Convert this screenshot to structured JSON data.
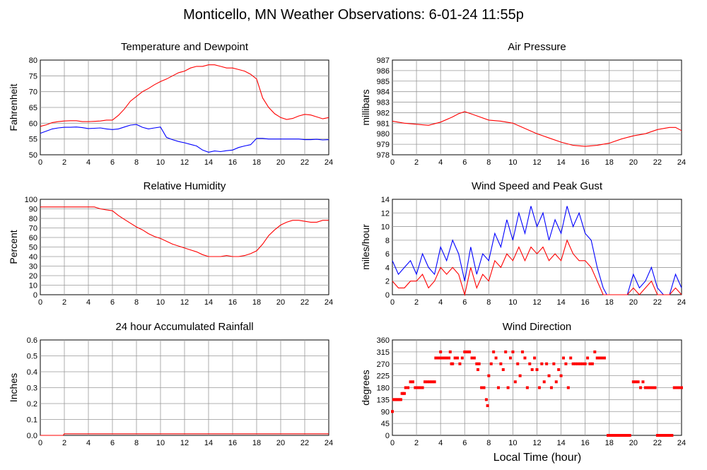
{
  "page_title": "Monticello, MN Weather Observations: 6-01-24 11:55p",
  "x_axis_label": "Local Time (hour)",
  "x_ticks": [
    "0",
    "2",
    "4",
    "6",
    "8",
    "10",
    "12",
    "14",
    "16",
    "18",
    "20",
    "22",
    "24"
  ],
  "colors": {
    "red": "#ff0000",
    "blue": "#0000ff",
    "grid": "#999999"
  },
  "chart_data": [
    {
      "id": "temperature",
      "type": "line",
      "title": "Temperature and Dewpoint",
      "ylabel": "Fahrenheit",
      "xlim": [
        0,
        24
      ],
      "ylim": [
        50,
        80
      ],
      "yticks": [
        "50",
        "55",
        "60",
        "65",
        "70",
        "75",
        "80"
      ],
      "grid": true,
      "series": [
        {
          "color": "#ff0000",
          "x": [
            0,
            0.5,
            1,
            1.5,
            2,
            2.5,
            3,
            3.5,
            4,
            4.5,
            5,
            5.5,
            6,
            6.5,
            7,
            7.5,
            8,
            8.5,
            9,
            9.5,
            10,
            10.5,
            11,
            11.5,
            12,
            12.5,
            13,
            13.5,
            14,
            14.5,
            15,
            15.5,
            16,
            16.5,
            17,
            17.5,
            18,
            18.5,
            19,
            19.5,
            20,
            20.5,
            21,
            21.5,
            22,
            22.5,
            23,
            23.5,
            24
          ],
          "values": [
            59,
            59.5,
            60.2,
            60.5,
            60.7,
            60.8,
            60.8,
            60.5,
            60.5,
            60.6,
            60.7,
            61,
            61,
            62.5,
            64.5,
            67,
            68.5,
            70,
            71,
            72.2,
            73.2,
            74,
            75,
            76,
            76.5,
            77.5,
            78,
            78,
            78.5,
            78.5,
            78,
            77.5,
            77.5,
            77,
            76.5,
            75.5,
            74,
            68,
            65,
            63,
            61.8,
            61.2,
            61.5,
            62.3,
            62.8,
            62.6,
            62,
            61.4,
            61.8
          ]
        },
        {
          "color": "#0000ff",
          "x": [
            0,
            0.5,
            1,
            1.5,
            2,
            2.5,
            3,
            3.5,
            4,
            4.5,
            5,
            5.5,
            6,
            6.5,
            7,
            7.5,
            8,
            8.5,
            9,
            9.5,
            10,
            10.5,
            11,
            11.5,
            12,
            12.5,
            13,
            13.5,
            14,
            14.5,
            15,
            15.5,
            16,
            16.5,
            17,
            17.5,
            18,
            18.5,
            19,
            19.5,
            20,
            20.5,
            21,
            21.5,
            22,
            22.5,
            23,
            23.5,
            24
          ],
          "values": [
            56.8,
            57.5,
            58.2,
            58.5,
            58.7,
            58.7,
            58.8,
            58.6,
            58.3,
            58.4,
            58.5,
            58.2,
            58,
            58.2,
            58.8,
            59.4,
            59.6,
            58.7,
            58.2,
            58.5,
            58.8,
            55.5,
            54.8,
            54.2,
            53.8,
            53.3,
            52.8,
            51.5,
            50.8,
            51.2,
            51,
            51.3,
            51.5,
            52.3,
            52.8,
            53.2,
            55.2,
            55.2,
            55,
            55,
            55,
            55,
            55,
            55,
            54.8,
            54.8,
            54.9,
            54.7,
            54.8
          ]
        }
      ]
    },
    {
      "id": "pressure",
      "type": "line",
      "title": "Air Pressure",
      "ylabel": "millibars",
      "xlim": [
        0,
        24
      ],
      "ylim": [
        978,
        987
      ],
      "yticks": [
        "978",
        "979",
        "980",
        "981",
        "982",
        "983",
        "984",
        "985",
        "986",
        "987"
      ],
      "grid": true,
      "series": [
        {
          "color": "#ff0000",
          "x": [
            0,
            1,
            2,
            3,
            4,
            5,
            5.5,
            6,
            6.5,
            7,
            8,
            9,
            10,
            11,
            12,
            13,
            14,
            15,
            16,
            17,
            18,
            19,
            20,
            21,
            22,
            23,
            23.5,
            24
          ],
          "values": [
            981.2,
            981.0,
            980.9,
            980.8,
            981.1,
            981.6,
            981.9,
            982.1,
            981.9,
            981.7,
            981.3,
            981.2,
            981.0,
            980.5,
            980.0,
            979.6,
            979.2,
            978.9,
            978.8,
            978.9,
            979.1,
            979.5,
            979.8,
            980.0,
            980.4,
            980.6,
            980.6,
            980.3
          ]
        }
      ]
    },
    {
      "id": "humidity",
      "type": "line",
      "title": "Relative Humidity",
      "ylabel": "Percent",
      "xlim": [
        0,
        24
      ],
      "ylim": [
        0,
        100
      ],
      "yticks": [
        "0",
        "10",
        "20",
        "30",
        "40",
        "50",
        "60",
        "70",
        "80",
        "90",
        "100"
      ],
      "grid": true,
      "series": [
        {
          "color": "#ff0000",
          "x": [
            0,
            1,
            2,
            3,
            4,
            4.5,
            5,
            5.5,
            6,
            6.5,
            7,
            7.5,
            8,
            8.5,
            9,
            9.5,
            10,
            10.5,
            11,
            11.5,
            12,
            12.5,
            13,
            13.5,
            14,
            14.5,
            15,
            15.5,
            16,
            16.5,
            17,
            17.5,
            18,
            18.5,
            19,
            19.5,
            20,
            20.5,
            21,
            21.5,
            22,
            22.5,
            23,
            23.5,
            24
          ],
          "values": [
            92,
            92,
            92,
            92,
            92,
            92,
            90,
            89,
            88,
            83,
            79,
            75,
            71,
            68,
            64,
            61,
            59,
            56,
            53,
            51,
            49,
            47,
            45,
            42,
            40,
            40,
            40,
            41,
            40,
            40,
            41,
            43,
            46,
            53,
            62,
            68,
            73,
            76,
            78,
            78,
            77,
            76,
            76,
            78,
            78
          ]
        }
      ]
    },
    {
      "id": "wind",
      "type": "line",
      "title": "Wind Speed and Peak Gust",
      "ylabel": "miles/hour",
      "xlim": [
        0,
        24
      ],
      "ylim": [
        0,
        14
      ],
      "yticks": [
        "0",
        "2",
        "4",
        "6",
        "8",
        "10",
        "12",
        "14"
      ],
      "grid": true,
      "series": [
        {
          "color": "#0000ff",
          "x": [
            0,
            0.5,
            1,
            1.5,
            2,
            2.5,
            3,
            3.5,
            4,
            4.5,
            5,
            5.5,
            6,
            6.5,
            7,
            7.5,
            8,
            8.5,
            9,
            9.5,
            10,
            10.5,
            11,
            11.5,
            12,
            12.5,
            13,
            13.5,
            14,
            14.5,
            15,
            15.5,
            16,
            16.5,
            17,
            17.5,
            17.8,
            18,
            19,
            19.5,
            20,
            20.5,
            21,
            21.5,
            22,
            22.5,
            23,
            23.5,
            24
          ],
          "values": [
            5,
            3,
            4,
            5,
            3,
            6,
            4,
            3,
            7,
            5,
            8,
            6,
            2,
            7,
            3,
            6,
            5,
            9,
            7,
            11,
            8,
            12,
            9,
            13,
            10,
            12,
            8,
            11,
            9,
            13,
            10,
            12,
            9,
            8,
            4,
            1,
            0,
            0,
            0,
            0,
            3,
            1,
            2,
            4,
            1,
            0,
            0,
            3,
            1
          ]
        },
        {
          "color": "#ff0000",
          "x": [
            0,
            0.5,
            1,
            1.5,
            2,
            2.5,
            3,
            3.5,
            4,
            4.5,
            5,
            5.5,
            6,
            6.5,
            7,
            7.5,
            8,
            8.5,
            9,
            9.5,
            10,
            10.5,
            11,
            11.5,
            12,
            12.5,
            13,
            13.5,
            14,
            14.5,
            15,
            15.5,
            16,
            16.5,
            17,
            17.5,
            17.8,
            18,
            19,
            19.5,
            20,
            20.5,
            21,
            21.5,
            22,
            22.5,
            23,
            23.5,
            24
          ],
          "values": [
            2,
            1,
            1,
            2,
            2,
            3,
            1,
            2,
            4,
            3,
            4,
            3,
            0,
            4,
            1,
            3,
            2,
            5,
            4,
            6,
            5,
            7,
            5,
            7,
            6,
            7,
            5,
            6,
            5,
            8,
            6,
            5,
            5,
            4,
            2,
            0,
            0,
            0,
            0,
            0,
            1,
            0,
            1,
            2,
            0,
            0,
            0,
            1,
            0
          ]
        }
      ]
    },
    {
      "id": "rainfall",
      "type": "line",
      "title": "24 hour Accumulated Rainfall",
      "ylabel": "Inches",
      "xlim": [
        0,
        24
      ],
      "ylim": [
        0,
        0.6
      ],
      "yticks": [
        "0.0",
        "0.1",
        "0.2",
        "0.3",
        "0.4",
        "0.5",
        "0.6"
      ],
      "grid": true,
      "series": [
        {
          "color": "#ff0000",
          "x": [
            0,
            1.9,
            2,
            24
          ],
          "values": [
            0,
            0,
            0.01,
            0.01
          ]
        }
      ]
    },
    {
      "id": "direction",
      "type": "scatter",
      "title": "Wind Direction",
      "ylabel": "degrees",
      "xlim": [
        0,
        24
      ],
      "ylim": [
        0,
        360
      ],
      "yticks": [
        "0",
        "45",
        "90",
        "135",
        "180",
        "225",
        "270",
        "315",
        "360"
      ],
      "grid": true,
      "series": [
        {
          "color": "#ff0000",
          "x": [
            0,
            0.1,
            0.2,
            0.3,
            0.4,
            0.5,
            0.6,
            0.7,
            0.8,
            0.9,
            1.0,
            1.1,
            1.2,
            1.3,
            1.5,
            1.7,
            1.9,
            2.1,
            2.3,
            2.5,
            2.7,
            2.9,
            3.1,
            3.3,
            3.5,
            3.6,
            3.7,
            3.8,
            3.9,
            4.0,
            4.1,
            4.2,
            4.3,
            4.4,
            4.5,
            4.6,
            4.7,
            4.8,
            4.9,
            5.0,
            5.2,
            5.4,
            5.6,
            5.8,
            6.0,
            6.2,
            6.4,
            6.6,
            6.8,
            7.0,
            7.1,
            7.2,
            7.4,
            7.6,
            7.8,
            7.9,
            8.0,
            8.2,
            8.4,
            8.6,
            8.8,
            9.0,
            9.2,
            9.4,
            9.6,
            9.8,
            10.0,
            10.2,
            10.4,
            10.6,
            10.8,
            11.0,
            11.2,
            11.4,
            11.6,
            11.8,
            12.0,
            12.2,
            12.4,
            12.6,
            12.8,
            13.0,
            13.2,
            13.4,
            13.6,
            13.8,
            14.0,
            14.2,
            14.4,
            14.6,
            14.8,
            15.0,
            15.2,
            15.4,
            15.6,
            15.8,
            16.0,
            16.2,
            16.4,
            16.6,
            16.8,
            17.0,
            17.2,
            17.4,
            17.6,
            17.9,
            18.1,
            18.3,
            18.5,
            18.7,
            18.9,
            19.1,
            19.3,
            19.5,
            19.7,
            20.0,
            20.2,
            20.4,
            20.6,
            20.8,
            21.0,
            21.2,
            21.4,
            21.6,
            21.8,
            22.0,
            22.2,
            22.4,
            22.6,
            22.8,
            23.0,
            23.2,
            23.4,
            23.6,
            23.8,
            24.0
          ],
          "values": [
            90,
            135,
            135,
            135,
            135,
            135,
            135,
            135,
            158,
            158,
            158,
            180,
            180,
            180,
            202,
            202,
            180,
            180,
            180,
            180,
            202,
            202,
            202,
            202,
            202,
            292,
            292,
            292,
            292,
            315,
            292,
            292,
            292,
            292,
            292,
            292,
            292,
            315,
            270,
            270,
            292,
            292,
            270,
            292,
            315,
            315,
            315,
            292,
            292,
            270,
            248,
            270,
            180,
            180,
            135,
            112,
            225,
            270,
            315,
            292,
            180,
            270,
            248,
            315,
            180,
            292,
            315,
            202,
            270,
            225,
            315,
            292,
            180,
            270,
            248,
            292,
            248,
            180,
            270,
            202,
            270,
            225,
            180,
            270,
            202,
            248,
            225,
            292,
            270,
            180,
            292,
            270,
            270,
            270,
            270,
            270,
            270,
            292,
            270,
            270,
            315,
            292,
            292,
            292,
            292,
            0,
            0,
            0,
            0,
            0,
            0,
            0,
            0,
            0,
            0,
            202,
            202,
            202,
            180,
            202,
            180,
            180,
            180,
            180,
            180,
            0,
            0,
            0,
            0,
            0,
            0,
            0,
            180,
            180,
            180,
            180
          ]
        }
      ]
    }
  ]
}
